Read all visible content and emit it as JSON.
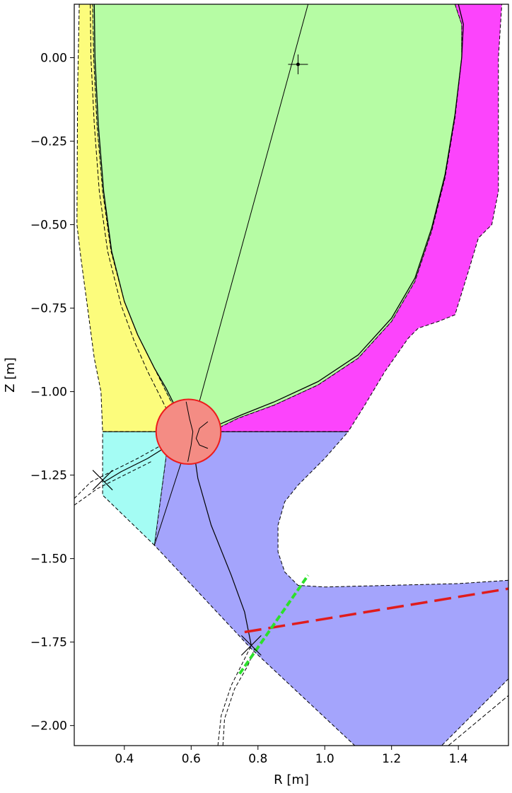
{
  "chart_data": {
    "type": "area",
    "title": "",
    "xlabel": "R [m]",
    "ylabel": "Z [m]",
    "xlim": [
      0.25,
      1.55
    ],
    "ylim": [
      -2.06,
      0.16
    ],
    "xticks": [
      0.4,
      0.6,
      0.8,
      1.0,
      1.2,
      1.4
    ],
    "xtick_labels": [
      "0.4",
      "0.6",
      "0.8",
      "1.0",
      "1.2",
      "1.4"
    ],
    "yticks": [
      0.0,
      -0.25,
      -0.5,
      -0.75,
      -1.0,
      -1.25,
      -1.5,
      -1.75,
      -2.0
    ],
    "ytick_labels": [
      "0.00",
      "−0.25",
      "−0.50",
      "−0.75",
      "−1.00",
      "−1.25",
      "−1.50",
      "−1.75",
      "−2.00"
    ],
    "grid": false,
    "colors": {
      "core": "#b6fca4",
      "inner_sol": "#fcfc7c",
      "outer_sol": "#fc44fc",
      "inner_divertor": "#a4fcf4",
      "outer_divertor": "#a4a4fc",
      "xpoint_circle_fill": "#f48c84",
      "xpoint_circle_edge": "#ec1c1c",
      "red_dashed": "#e01c1c",
      "green_dashed": "#2ce02c"
    },
    "regions": [
      {
        "id": "core",
        "color_key": "core",
        "points": [
          [
            0.305,
            0.16
          ],
          [
            0.308,
            0.0
          ],
          [
            0.318,
            -0.2
          ],
          [
            0.335,
            -0.4
          ],
          [
            0.36,
            -0.58
          ],
          [
            0.4,
            -0.73
          ],
          [
            0.44,
            -0.83
          ],
          [
            0.49,
            -0.93
          ],
          [
            0.52,
            -0.99
          ],
          [
            0.545,
            -1.04
          ],
          [
            0.565,
            -1.09
          ],
          [
            0.585,
            -1.12
          ],
          [
            0.62,
            -1.115
          ],
          [
            0.68,
            -1.11
          ],
          [
            0.74,
            -1.08
          ],
          [
            0.85,
            -1.04
          ],
          [
            0.98,
            -0.98
          ],
          [
            1.1,
            -0.9
          ],
          [
            1.2,
            -0.79
          ],
          [
            1.27,
            -0.67
          ],
          [
            1.32,
            -0.52
          ],
          [
            1.36,
            -0.36
          ],
          [
            1.39,
            -0.18
          ],
          [
            1.41,
            0.0
          ],
          [
            1.41,
            0.1
          ],
          [
            1.39,
            0.16
          ]
        ]
      },
      {
        "id": "inner_sol",
        "color_key": "inner_sol",
        "points": [
          [
            0.265,
            0.16
          ],
          [
            0.26,
            -0.1
          ],
          [
            0.258,
            -0.5
          ],
          [
            0.27,
            -0.6
          ],
          [
            0.29,
            -0.75
          ],
          [
            0.31,
            -0.9
          ],
          [
            0.33,
            -1.0
          ],
          [
            0.335,
            -1.12
          ],
          [
            0.5,
            -1.12
          ],
          [
            0.535,
            -1.08
          ],
          [
            0.545,
            -1.04
          ],
          [
            0.52,
            -0.99
          ],
          [
            0.49,
            -0.93
          ],
          [
            0.44,
            -0.83
          ],
          [
            0.4,
            -0.73
          ],
          [
            0.36,
            -0.58
          ],
          [
            0.335,
            -0.4
          ],
          [
            0.318,
            -0.2
          ],
          [
            0.308,
            0.0
          ],
          [
            0.305,
            0.16
          ]
        ]
      },
      {
        "id": "outer_sol",
        "color_key": "outer_sol",
        "points": [
          [
            1.39,
            0.16
          ],
          [
            1.41,
            0.1
          ],
          [
            1.41,
            0.0
          ],
          [
            1.39,
            -0.18
          ],
          [
            1.36,
            -0.36
          ],
          [
            1.32,
            -0.52
          ],
          [
            1.27,
            -0.67
          ],
          [
            1.2,
            -0.79
          ],
          [
            1.1,
            -0.9
          ],
          [
            0.98,
            -0.98
          ],
          [
            0.85,
            -1.04
          ],
          [
            0.74,
            -1.08
          ],
          [
            0.68,
            -1.11
          ],
          [
            0.66,
            -1.12
          ],
          [
            1.07,
            -1.12
          ],
          [
            1.12,
            -1.04
          ],
          [
            1.18,
            -0.94
          ],
          [
            1.25,
            -0.84
          ],
          [
            1.28,
            -0.81
          ],
          [
            1.34,
            -0.79
          ],
          [
            1.39,
            -0.77
          ],
          [
            1.43,
            -0.64
          ],
          [
            1.46,
            -0.54
          ],
          [
            1.5,
            -0.5
          ],
          [
            1.52,
            -0.4
          ],
          [
            1.52,
            0.0
          ],
          [
            1.53,
            0.16
          ]
        ]
      },
      {
        "id": "inner_divertor",
        "color_key": "inner_divertor",
        "points": [
          [
            0.335,
            -1.12
          ],
          [
            0.535,
            -1.12
          ],
          [
            0.49,
            -1.46
          ],
          [
            0.335,
            -1.31
          ]
        ]
      },
      {
        "id": "outer_divertor",
        "color_key": "outer_divertor",
        "points": [
          [
            0.535,
            -1.12
          ],
          [
            1.07,
            -1.12
          ],
          [
            1.0,
            -1.2
          ],
          [
            0.92,
            -1.28
          ],
          [
            0.88,
            -1.33
          ],
          [
            0.86,
            -1.4
          ],
          [
            0.86,
            -1.48
          ],
          [
            0.88,
            -1.54
          ],
          [
            0.92,
            -1.58
          ],
          [
            1.0,
            -1.585
          ],
          [
            1.2,
            -1.58
          ],
          [
            1.4,
            -1.575
          ],
          [
            1.55,
            -1.565
          ],
          [
            1.55,
            -1.86
          ],
          [
            1.35,
            -2.06
          ],
          [
            1.09,
            -2.06
          ],
          [
            0.78,
            -1.77
          ],
          [
            0.49,
            -1.46
          ]
        ]
      }
    ],
    "separatrix": [
      [
        0.31,
        0.16
      ],
      [
        0.312,
        0.0
      ],
      [
        0.322,
        -0.2
      ],
      [
        0.338,
        -0.4
      ],
      [
        0.362,
        -0.58
      ],
      [
        0.4,
        -0.73
      ],
      [
        0.44,
        -0.83
      ],
      [
        0.49,
        -0.93
      ],
      [
        0.525,
        -0.99
      ],
      [
        0.55,
        -1.04
      ],
      [
        0.575,
        -1.09
      ],
      [
        0.59,
        -1.12
      ],
      [
        0.62,
        -1.11
      ],
      [
        0.68,
        -1.1
      ],
      [
        0.75,
        -1.07
      ],
      [
        0.85,
        -1.03
      ],
      [
        0.98,
        -0.97
      ],
      [
        1.1,
        -0.89
      ],
      [
        1.2,
        -0.78
      ],
      [
        1.27,
        -0.66
      ],
      [
        1.32,
        -0.51
      ],
      [
        1.36,
        -0.35
      ],
      [
        1.39,
        -0.17
      ],
      [
        1.41,
        0.0
      ],
      [
        1.415,
        0.1
      ],
      [
        1.4,
        0.16
      ]
    ],
    "separatrix_dashed": [
      [
        0.298,
        0.16
      ],
      [
        0.3,
        0.0
      ],
      [
        0.31,
        -0.2
      ],
      [
        0.325,
        -0.4
      ],
      [
        0.35,
        -0.58
      ],
      [
        0.39,
        -0.74
      ],
      [
        0.43,
        -0.85
      ],
      [
        0.47,
        -0.94
      ],
      [
        0.51,
        -1.02
      ],
      [
        0.55,
        -1.1
      ],
      [
        0.57,
        -1.12
      ]
    ],
    "divertor_legs": [
      [
        [
          0.6,
          -1.12
        ],
        [
          0.62,
          -1.26
        ],
        [
          0.66,
          -1.4
        ],
        [
          0.72,
          -1.55
        ],
        [
          0.76,
          -1.66
        ],
        [
          0.78,
          -1.76
        ]
      ],
      [
        [
          0.585,
          -1.12
        ],
        [
          0.55,
          -1.15
        ],
        [
          0.47,
          -1.2
        ],
        [
          0.39,
          -1.24
        ],
        [
          0.34,
          -1.27
        ]
      ]
    ],
    "flux_guides": [
      [
        [
          0.25,
          -1.32
        ],
        [
          0.3,
          -1.27
        ],
        [
          0.36,
          -1.24
        ],
        [
          0.44,
          -1.2
        ],
        [
          0.53,
          -1.15
        ],
        [
          0.585,
          -1.12
        ]
      ],
      [
        [
          0.25,
          -1.34
        ],
        [
          0.32,
          -1.29
        ],
        [
          0.4,
          -1.25
        ],
        [
          0.48,
          -1.21
        ]
      ],
      [
        [
          0.68,
          -2.06
        ],
        [
          0.69,
          -1.97
        ],
        [
          0.72,
          -1.88
        ],
        [
          0.76,
          -1.8
        ],
        [
          0.78,
          -1.76
        ]
      ],
      [
        [
          0.695,
          -2.06
        ],
        [
          0.7,
          -1.98
        ],
        [
          0.73,
          -1.89
        ],
        [
          0.77,
          -1.82
        ],
        [
          0.79,
          -1.77
        ]
      ]
    ],
    "chords": [
      [
        [
          0.95,
          0.16
        ],
        [
          0.6,
          -1.12
        ]
      ],
      [
        [
          0.6,
          -1.12
        ],
        [
          0.49,
          -1.46
        ]
      ]
    ],
    "markers": [
      {
        "id": "magnetic_axis",
        "r": 0.92,
        "z": -0.02,
        "shape": "plus"
      },
      {
        "id": "xpoint_inner",
        "r": 0.335,
        "z": -1.265,
        "shape": "x"
      },
      {
        "id": "xpoint_outer",
        "r": 0.78,
        "z": -1.76,
        "shape": "x"
      }
    ],
    "xpoint_circle": {
      "r": 0.592,
      "z": -1.12,
      "radius_data_z": 0.097
    },
    "red_dashed_line": [
      [
        0.76,
        -1.72
      ],
      [
        1.55,
        -1.59
      ]
    ],
    "green_dashed_line": [
      [
        0.745,
        -1.845
      ],
      [
        0.95,
        -1.55
      ]
    ]
  }
}
